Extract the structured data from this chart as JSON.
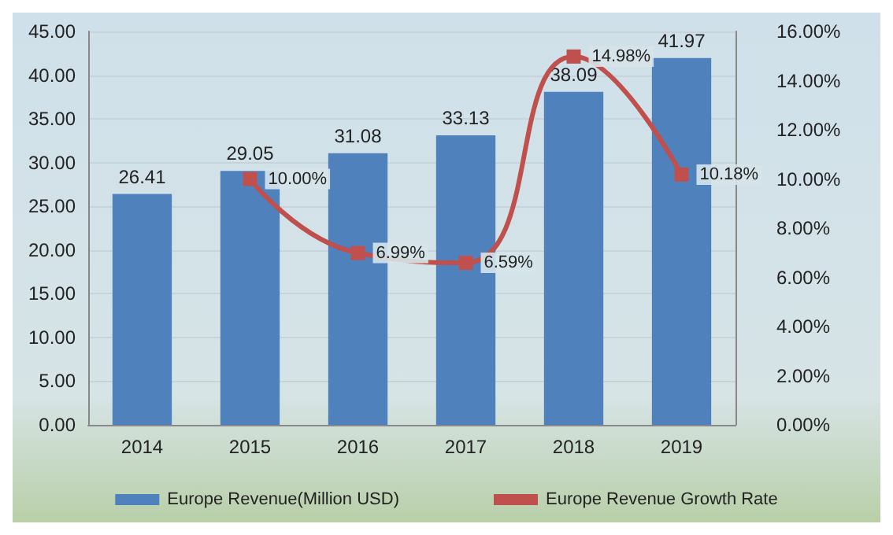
{
  "chart_data": {
    "type": "bar",
    "categories": [
      "2014",
      "2015",
      "2016",
      "2017",
      "2018",
      "2019"
    ],
    "series": [
      {
        "name": "Europe Revenue(Million USD)",
        "color": "#4f81bd",
        "values": [
          26.41,
          29.05,
          31.08,
          33.13,
          38.09,
          41.97
        ],
        "value_labels": [
          "26.41",
          "29.05",
          "31.08",
          "33.13",
          "38.09",
          "41.97"
        ]
      },
      {
        "name": "Europe Revenue Growth Rate",
        "type": "line",
        "axis": "y2",
        "color": "#c0504d",
        "marker": "square",
        "values": [
          null,
          10.0,
          6.99,
          6.59,
          14.98,
          10.18
        ],
        "value_labels": [
          null,
          "10.00%",
          "6.99%",
          "6.59%",
          "14.98%",
          "10.18%"
        ]
      }
    ],
    "ylim": [
      0,
      45
    ],
    "yticks": [
      {
        "value": 0,
        "label": "0.00"
      },
      {
        "value": 5,
        "label": "5.00"
      },
      {
        "value": 10,
        "label": "10.00"
      },
      {
        "value": 15,
        "label": "15.00"
      },
      {
        "value": 20,
        "label": "20.00"
      },
      {
        "value": 25,
        "label": "25.00"
      },
      {
        "value": 30,
        "label": "30.00"
      },
      {
        "value": 35,
        "label": "35.00"
      },
      {
        "value": 40,
        "label": "40.00"
      },
      {
        "value": 45,
        "label": "45.00"
      }
    ],
    "y2lim": [
      0,
      16
    ],
    "y2ticks": [
      {
        "value": 0,
        "label": "0.00%"
      },
      {
        "value": 2,
        "label": "2.00%"
      },
      {
        "value": 4,
        "label": "4.00%"
      },
      {
        "value": 6,
        "label": "6.00%"
      },
      {
        "value": 8,
        "label": "8.00%"
      },
      {
        "value": 10,
        "label": "10.00%"
      },
      {
        "value": 12,
        "label": "12.00%"
      },
      {
        "value": 14,
        "label": "14.00%"
      },
      {
        "value": 16,
        "label": "16.00%"
      }
    ],
    "grid": "y",
    "legend": "bottom"
  }
}
